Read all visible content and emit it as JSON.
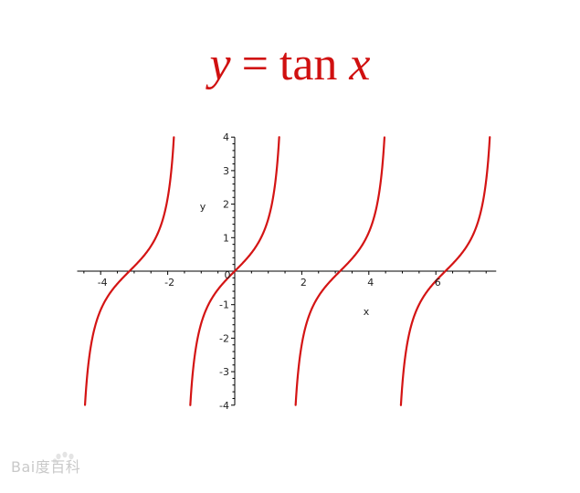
{
  "title": {
    "y": "y",
    "eq": "=",
    "fn": "tan",
    "x": "x"
  },
  "watermark": {
    "text": "Bai度百科"
  },
  "colors": {
    "curve": "#d41414",
    "title": "#d01010",
    "axis": "#000000"
  },
  "chart_data": {
    "type": "line",
    "title": "y = tan x",
    "xlabel": "x",
    "ylabel": "y",
    "xlim": [
      -4.7,
      7.8
    ],
    "ylim": [
      -4,
      4
    ],
    "x_ticks": [
      -4,
      -2,
      2,
      4,
      6
    ],
    "y_ticks": [
      -4,
      -3,
      -2,
      -1,
      1,
      2,
      3,
      4
    ],
    "origin_label": "0",
    "grid": false,
    "series": [
      {
        "function": "tan",
        "branches": [
          [
            -4.467,
            -1.816
          ],
          [
            -1.326,
            1.326
          ],
          [
            1.816,
            4.467
          ],
          [
            4.957,
            7.609
          ]
        ]
      }
    ]
  }
}
